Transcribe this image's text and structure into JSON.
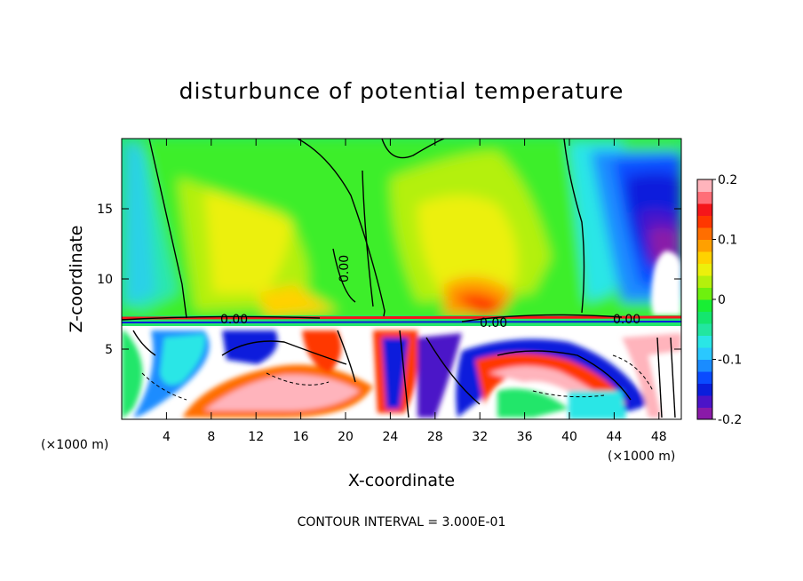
{
  "chart_data": {
    "type": "heatmap",
    "title": "disturbunce of potential temperature",
    "xlabel": "X-coordinate",
    "ylabel": "Z-coordinate",
    "x_unit_left": "(×1000 m)",
    "x_unit_right": "(×1000 m)",
    "xlim": [
      0,
      50
    ],
    "ylim": [
      0,
      20
    ],
    "x_ticks": [
      4,
      8,
      12,
      16,
      20,
      24,
      28,
      32,
      36,
      40,
      44,
      48
    ],
    "y_ticks": [
      5,
      10,
      15
    ],
    "colorbar": {
      "range": [
        -0.2,
        0.2
      ],
      "ticks": [
        {
          "value": 0.2,
          "label": "0.2"
        },
        {
          "value": 0.1,
          "label": "0.1"
        },
        {
          "value": 0.0,
          "label": "0"
        },
        {
          "value": -0.1,
          "label": "-0.1"
        },
        {
          "value": -0.2,
          "label": "-0.2"
        }
      ],
      "colors": [
        "#8a1aa8",
        "#4b14c8",
        "#0a1edc",
        "#0a4bff",
        "#1a8cff",
        "#2ac8ff",
        "#2ae6e6",
        "#22e6a0",
        "#14e66e",
        "#18ee34",
        "#6ef00e",
        "#b4f00c",
        "#ecf00c",
        "#ffd200",
        "#ffa000",
        "#ff6e00",
        "#ff3700",
        "#f5161a",
        "#ff6e78",
        "#ffb4bc"
      ]
    },
    "contour_labels": [
      "0.00",
      "0.00",
      "0.00",
      "0.00"
    ],
    "footer": "CONTOUR INTERVAL = 3.000E-01"
  }
}
